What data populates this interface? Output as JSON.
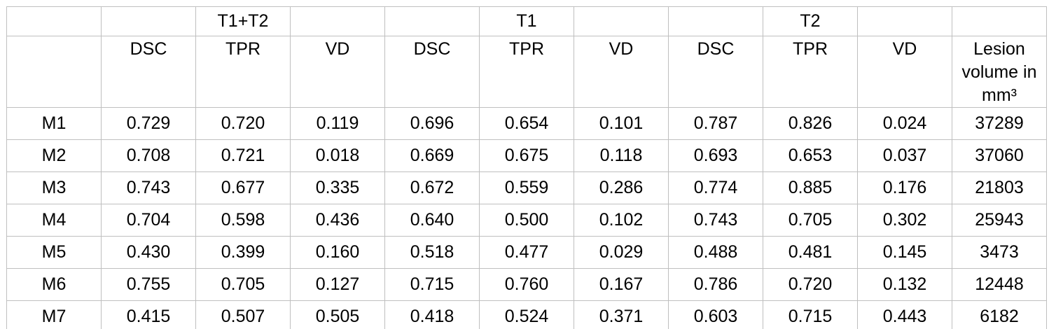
{
  "table": {
    "group_header_row": [
      "",
      "",
      "T1+T2",
      "",
      "",
      "T1",
      "",
      "",
      "T2",
      "",
      ""
    ],
    "column_header_row": [
      "",
      "DSC",
      "TPR",
      "VD",
      "DSC",
      "TPR",
      "VD",
      "DSC",
      "TPR",
      "VD",
      "Lesion volume in mm³"
    ],
    "rows": [
      {
        "label": "M1",
        "values": [
          "0.729",
          "0.720",
          "0.119",
          "0.696",
          "0.654",
          "0.101",
          "0.787",
          "0.826",
          "0.024",
          "37289"
        ]
      },
      {
        "label": "M2",
        "values": [
          "0.708",
          "0.721",
          "0.018",
          "0.669",
          "0.675",
          "0.118",
          "0.693",
          "0.653",
          "0.037",
          "37060"
        ]
      },
      {
        "label": "M3",
        "values": [
          "0.743",
          "0.677",
          "0.335",
          "0.672",
          "0.559",
          "0.286",
          "0.774",
          "0.885",
          "0.176",
          "21803"
        ]
      },
      {
        "label": "M4",
        "values": [
          "0.704",
          "0.598",
          "0.436",
          "0.640",
          "0.500",
          "0.102",
          "0.743",
          "0.705",
          "0.302",
          "25943"
        ]
      },
      {
        "label": "M5",
        "values": [
          "0.430",
          "0.399",
          "0.160",
          "0.518",
          "0.477",
          "0.029",
          "0.488",
          "0.481",
          "0.145",
          "3473"
        ]
      },
      {
        "label": "M6",
        "values": [
          "0.755",
          "0.705",
          "0.127",
          "0.715",
          "0.760",
          "0.167",
          "0.786",
          "0.720",
          "0.132",
          "12448"
        ]
      },
      {
        "label": "M7",
        "values": [
          "0.415",
          "0.507",
          "0.505",
          "0.418",
          "0.524",
          "0.371",
          "0.603",
          "0.715",
          "0.443",
          "6182"
        ]
      }
    ],
    "colors": {
      "border": "#bfbfbf",
      "text": "#000000",
      "background": "#ffffff"
    }
  },
  "chart_data": {
    "type": "table",
    "title": "",
    "column_groups": [
      "T1+T2",
      "T1",
      "T2"
    ],
    "columns": [
      "",
      "DSC",
      "TPR",
      "VD",
      "DSC",
      "TPR",
      "VD",
      "DSC",
      "TPR",
      "VD",
      "Lesion volume in mm³"
    ],
    "rows": [
      [
        "M1",
        0.729,
        0.72,
        0.119,
        0.696,
        0.654,
        0.101,
        0.787,
        0.826,
        0.024,
        37289
      ],
      [
        "M2",
        0.708,
        0.721,
        0.018,
        0.669,
        0.675,
        0.118,
        0.693,
        0.653,
        0.037,
        37060
      ],
      [
        "M3",
        0.743,
        0.677,
        0.335,
        0.672,
        0.559,
        0.286,
        0.774,
        0.885,
        0.176,
        21803
      ],
      [
        "M4",
        0.704,
        0.598,
        0.436,
        0.64,
        0.5,
        0.102,
        0.743,
        0.705,
        0.302,
        25943
      ],
      [
        "M5",
        0.43,
        0.399,
        0.16,
        0.518,
        0.477,
        0.029,
        0.488,
        0.481,
        0.145,
        3473
      ],
      [
        "M6",
        0.755,
        0.705,
        0.127,
        0.715,
        0.76,
        0.167,
        0.786,
        0.72,
        0.132,
        12448
      ],
      [
        "M7",
        0.415,
        0.507,
        0.505,
        0.418,
        0.524,
        0.371,
        0.603,
        0.715,
        0.443,
        6182
      ]
    ]
  }
}
